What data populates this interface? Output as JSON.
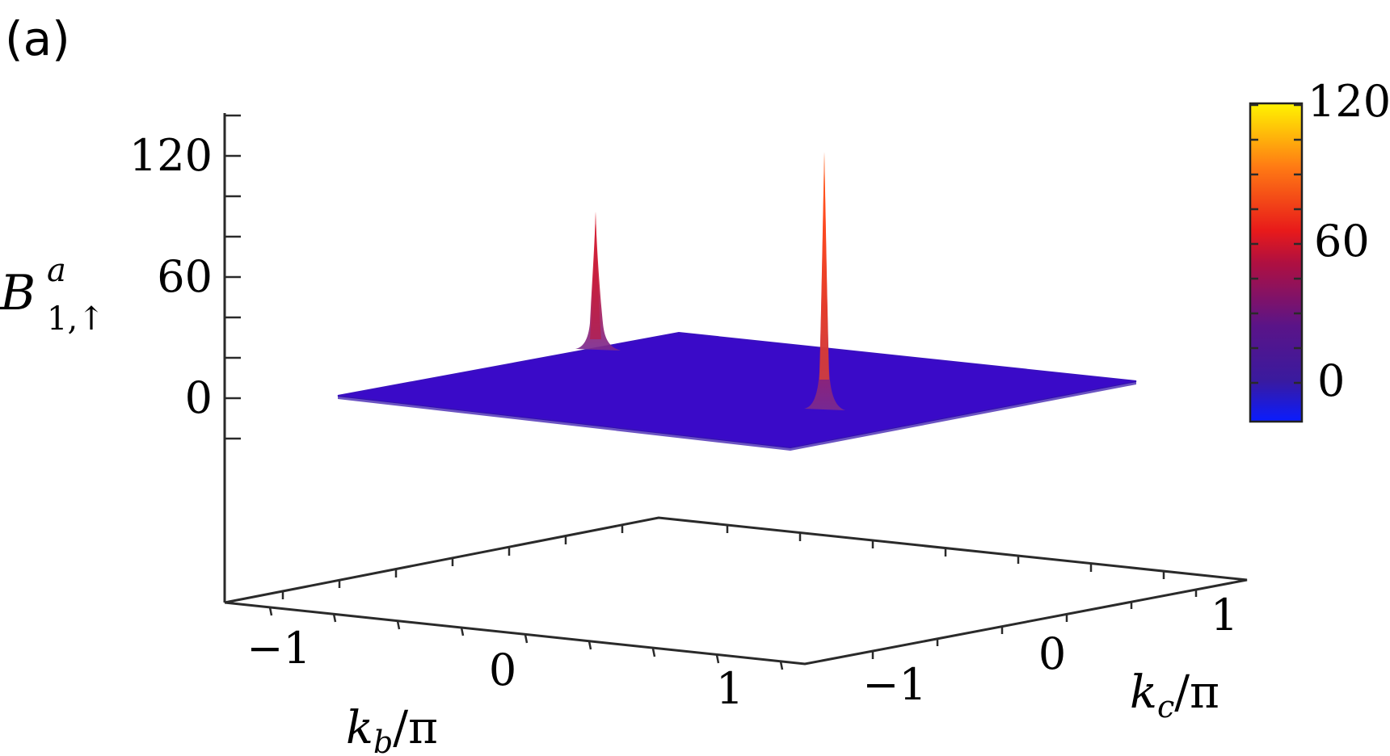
{
  "panel_label": "(a)",
  "chart_data": {
    "type": "surface",
    "zlabel": {
      "base": "B",
      "sup": "a",
      "sub": "1,↑"
    },
    "xlabel": {
      "var": "k",
      "sub": "b",
      "rest": "/π"
    },
    "ylabel": {
      "var": "k",
      "sub": "c",
      "rest": "/π"
    },
    "z_ticks": [
      "0",
      "60",
      "120"
    ],
    "z_tick_values": [
      0,
      60,
      120
    ],
    "x_ticks": [
      "−1",
      "0",
      "1"
    ],
    "x_tick_values": [
      -1,
      0,
      1
    ],
    "y_ticks": [
      "−1",
      "0",
      "1"
    ],
    "y_tick_values": [
      -1,
      0,
      1
    ],
    "xlim": [
      -1.33,
      1.33
    ],
    "ylim": [
      -1.33,
      1.33
    ],
    "zlim": [
      -20,
      140
    ],
    "surface_baseline": 0,
    "peaks": [
      {
        "kb": -0.55,
        "kc": 0.2,
        "value": 95
      },
      {
        "kb": 0.55,
        "kc": -0.2,
        "value": 120
      }
    ],
    "colorbar": {
      "ticks": [
        "0",
        "60",
        "120"
      ],
      "tick_values": [
        0,
        60,
        120
      ],
      "range": [
        -20,
        120
      ],
      "colors": [
        "#0a1cff",
        "#3a1a9e",
        "#7a1070",
        "#d81028",
        "#ff4a10",
        "#ffa010",
        "#fff400"
      ],
      "position": "right"
    },
    "surface_color": "#3a0ac8"
  }
}
